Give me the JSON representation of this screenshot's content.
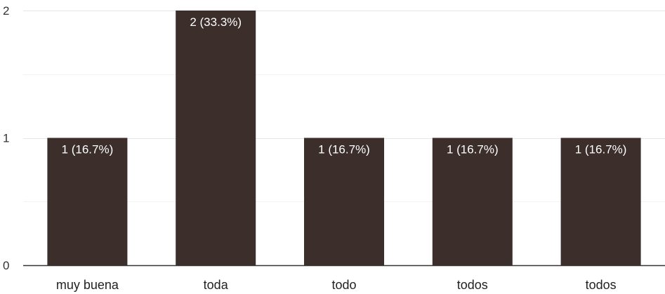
{
  "chart_data": {
    "type": "bar",
    "title": "",
    "xlabel": "",
    "ylabel": "",
    "categories": [
      "muy buena",
      "toda",
      "todo",
      "todos",
      "todos"
    ],
    "values": [
      1,
      2,
      1,
      1,
      1
    ],
    "data_labels": [
      "1 (16.7%)",
      "2 (33.3%)",
      "1 (16.7%)",
      "1 (16.7%)",
      "1 (16.7%)"
    ],
    "ylim": [
      0,
      2
    ],
    "yticks": [
      0,
      1,
      2
    ],
    "minor_gridlines": true,
    "grid": true,
    "legend": "none",
    "colors": {
      "bar": "#3b2e2b",
      "major_grid": "#e6e6e6",
      "minor_grid": "#f3f3f3",
      "baseline": "#333333"
    }
  }
}
